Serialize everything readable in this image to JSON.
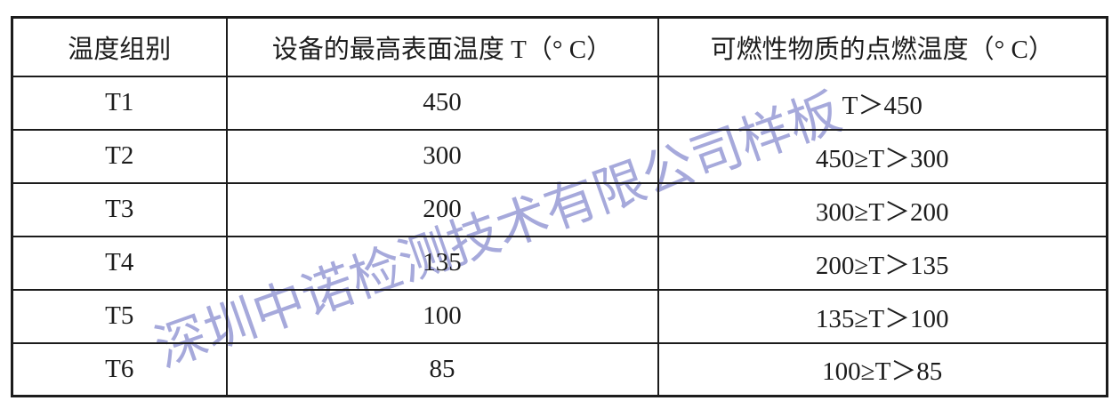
{
  "watermark": {
    "text": "深圳中诺检测技术有限公司样板",
    "color": "#9da0d8"
  },
  "table": {
    "columns": [
      "温度组别",
      "设备的最高表面温度 T（° C）",
      "可燃性物质的点燃温度（° C）"
    ],
    "rows": [
      {
        "group": "T1",
        "surface_temp": "450",
        "ignition_temp": "T＞450"
      },
      {
        "group": "T2",
        "surface_temp": "300",
        "ignition_temp": "450≥T＞300"
      },
      {
        "group": "T3",
        "surface_temp": "200",
        "ignition_temp": "300≥T＞200"
      },
      {
        "group": "T4",
        "surface_temp": "135",
        "ignition_temp": "200≥T＞135"
      },
      {
        "group": "T5",
        "surface_temp": "100",
        "ignition_temp": "135≥T＞100"
      },
      {
        "group": "T6",
        "surface_temp": "85",
        "ignition_temp": "100≥T＞85"
      }
    ]
  }
}
